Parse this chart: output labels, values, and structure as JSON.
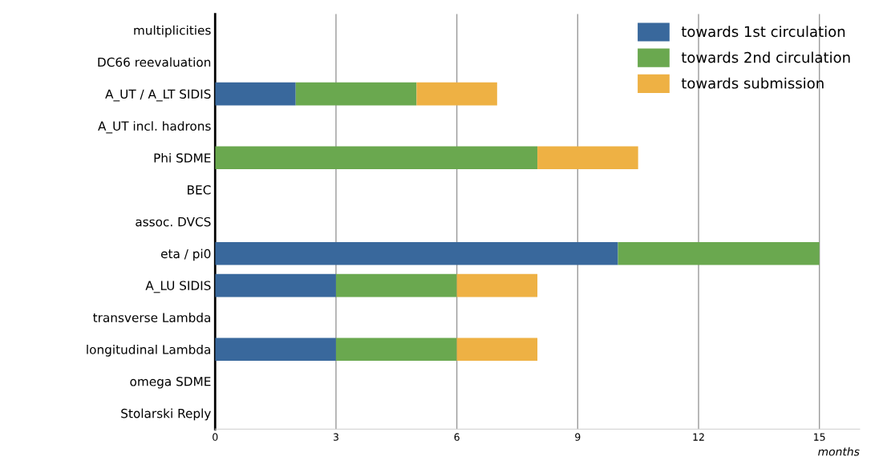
{
  "chart_data": {
    "type": "bar",
    "orientation": "horizontal",
    "stacked": true,
    "categories": [
      "multiplicities",
      "DC66 reevaluation",
      "A_UT / A_LT SIDIS",
      "A_UT incl. hadrons",
      "Phi SDME",
      "BEC",
      "assoc. DVCS",
      "eta / pi0",
      "A_LU SIDIS",
      "transverse Lambda",
      "longitudinal Lambda",
      "omega SDME",
      "Stolarski Reply"
    ],
    "series": [
      {
        "name": "towards 1st circulation",
        "color": "#39689c",
        "values": [
          null,
          null,
          2,
          null,
          null,
          null,
          null,
          10,
          3,
          null,
          3,
          null,
          null
        ]
      },
      {
        "name": "towards 2nd circulation",
        "color": "#6aa84f",
        "values": [
          null,
          null,
          3,
          null,
          8,
          null,
          null,
          5,
          3,
          null,
          3,
          null,
          null
        ]
      },
      {
        "name": "towards submission",
        "color": "#eeb144",
        "values": [
          null,
          null,
          2,
          null,
          2.5,
          null,
          null,
          null,
          2,
          null,
          2,
          null,
          null
        ]
      }
    ],
    "xlim": [
      0,
      16
    ],
    "xticks": [
      0,
      3,
      6,
      9,
      12,
      15
    ],
    "xlabel": "months",
    "grid": "x",
    "legend": "top right"
  }
}
